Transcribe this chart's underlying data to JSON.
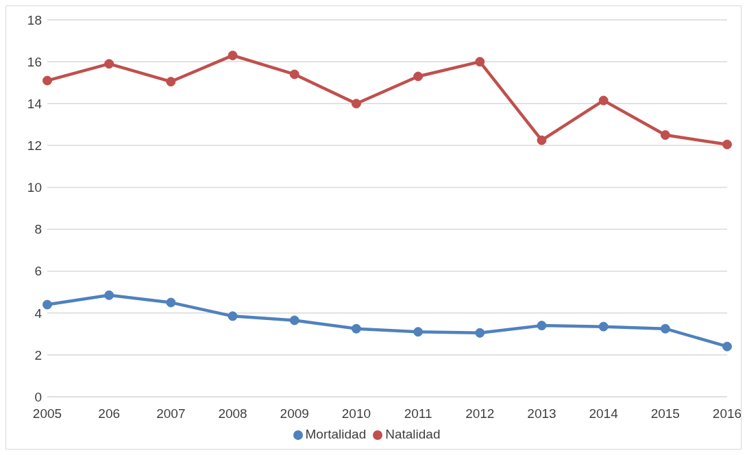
{
  "chart_data": {
    "type": "line",
    "categories": [
      "2005",
      "206",
      "2007",
      "2008",
      "2009",
      "2010",
      "2011",
      "2012",
      "2013",
      "2014",
      "2015",
      "2016"
    ],
    "series": [
      {
        "name": "Mortalidad",
        "color": "#4f81bd",
        "values": [
          4.4,
          4.85,
          4.5,
          3.85,
          3.65,
          3.25,
          3.1,
          3.05,
          3.4,
          3.35,
          3.25,
          2.4
        ]
      },
      {
        "name": "Natalidad",
        "color": "#c0504d",
        "values": [
          15.1,
          15.9,
          15.05,
          16.3,
          15.4,
          14.0,
          15.3,
          16.0,
          12.25,
          14.15,
          12.5,
          12.05
        ]
      }
    ],
    "ylim": [
      0,
      18
    ],
    "yticks": [
      0,
      2,
      4,
      6,
      8,
      10,
      12,
      14,
      16,
      18
    ],
    "grid": "y",
    "legend": "bottom",
    "marker": "circle",
    "line_style": "solid"
  }
}
